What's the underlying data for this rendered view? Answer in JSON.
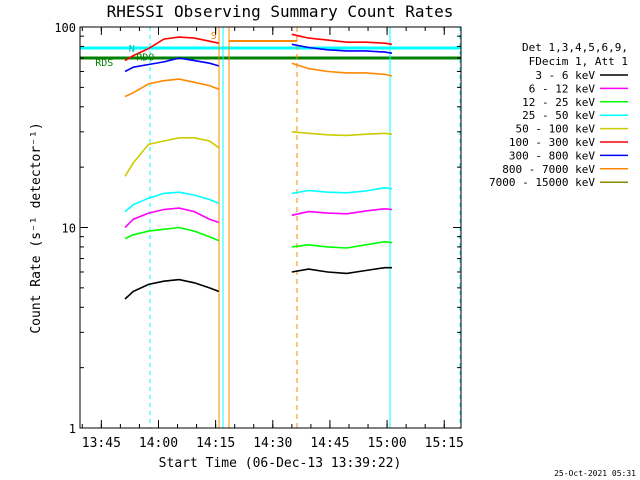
{
  "chart_data": {
    "type": "line",
    "title": "RHESSI Observing Summary Count Rates",
    "xlabel": "Start Time (06-Dec-13 13:39:22)",
    "ylabel": "Count Rate (s⁻¹ detector⁻¹)",
    "yscale": "log",
    "ylim": [
      1,
      100
    ],
    "xlim_minutes": [
      0,
      100
    ],
    "x_ticks": [
      {
        "label": "13:45",
        "minute": 5.6
      },
      {
        "label": "14:00",
        "minute": 20.6
      },
      {
        "label": "14:15",
        "minute": 35.6
      },
      {
        "label": "14:30",
        "minute": 50.6
      },
      {
        "label": "14:45",
        "minute": 65.6
      },
      {
        "label": "15:00",
        "minute": 80.6
      },
      {
        "label": "15:15",
        "minute": 95.6
      }
    ],
    "y_ticks": [
      {
        "label": "1",
        "value": 1
      },
      {
        "label": "10",
        "value": 10
      },
      {
        "label": "100",
        "value": 100
      }
    ],
    "legend_header": [
      "Det 1,3,4,5,6,9,",
      "FDecim 1, Att 1"
    ],
    "segments": [
      [
        11.8,
        36.4
      ],
      [
        55.6,
        81.9
      ]
    ],
    "series": [
      {
        "name": "3 - 6 keV",
        "color": "#000000",
        "values": [
          [
            11.8,
            4.4
          ],
          [
            14.0,
            4.8
          ],
          [
            18.0,
            5.2
          ],
          [
            22.0,
            5.4
          ],
          [
            26.0,
            5.5
          ],
          [
            30.0,
            5.3
          ],
          [
            34.0,
            5.0
          ],
          [
            36.4,
            4.8
          ],
          [
            55.6,
            6.0
          ],
          [
            60.0,
            6.2
          ],
          [
            65.0,
            6.0
          ],
          [
            70.0,
            5.9
          ],
          [
            75.0,
            6.1
          ],
          [
            80.0,
            6.3
          ],
          [
            81.9,
            6.3
          ]
        ]
      },
      {
        "name": "6 - 12 keV",
        "color": "#ff00ff",
        "values": [
          [
            11.8,
            10.0
          ],
          [
            14.0,
            11.0
          ],
          [
            18.0,
            11.8
          ],
          [
            22.0,
            12.3
          ],
          [
            26.0,
            12.5
          ],
          [
            30.0,
            12.0
          ],
          [
            34.0,
            11.0
          ],
          [
            36.4,
            10.6
          ],
          [
            55.6,
            11.5
          ],
          [
            60.0,
            12.0
          ],
          [
            65.0,
            11.8
          ],
          [
            70.0,
            11.7
          ],
          [
            75.0,
            12.1
          ],
          [
            80.0,
            12.4
          ],
          [
            81.9,
            12.3
          ]
        ]
      },
      {
        "name": "12 - 25 keV",
        "color": "#00ff00",
        "values": [
          [
            11.8,
            8.8
          ],
          [
            14.0,
            9.2
          ],
          [
            18.0,
            9.6
          ],
          [
            22.0,
            9.8
          ],
          [
            26.0,
            10.0
          ],
          [
            30.0,
            9.6
          ],
          [
            34.0,
            9.0
          ],
          [
            36.4,
            8.6
          ],
          [
            55.6,
            8.0
          ],
          [
            60.0,
            8.2
          ],
          [
            65.0,
            8.0
          ],
          [
            70.0,
            7.9
          ],
          [
            75.0,
            8.2
          ],
          [
            80.0,
            8.5
          ],
          [
            81.9,
            8.4
          ]
        ]
      },
      {
        "name": "25 - 50 keV",
        "color": "#00ffff",
        "values": [
          [
            11.8,
            12.0
          ],
          [
            14.0,
            13.0
          ],
          [
            18.0,
            14.0
          ],
          [
            22.0,
            14.8
          ],
          [
            26.0,
            15.0
          ],
          [
            30.0,
            14.5
          ],
          [
            34.0,
            13.8
          ],
          [
            36.4,
            13.2
          ],
          [
            55.6,
            14.8
          ],
          [
            60.0,
            15.3
          ],
          [
            65.0,
            15.0
          ],
          [
            70.0,
            14.9
          ],
          [
            75.0,
            15.2
          ],
          [
            80.0,
            15.8
          ],
          [
            81.9,
            15.6
          ]
        ]
      },
      {
        "name": "50 - 100 keV",
        "color": "#cccc00",
        "values": [
          [
            11.8,
            18.0
          ],
          [
            14.0,
            21.0
          ],
          [
            18.0,
            26.0
          ],
          [
            22.0,
            27.0
          ],
          [
            26.0,
            28.0
          ],
          [
            30.0,
            28.0
          ],
          [
            34.0,
            27.0
          ],
          [
            36.4,
            25.0
          ],
          [
            55.6,
            30.0
          ],
          [
            60.0,
            29.5
          ],
          [
            65.0,
            29.0
          ],
          [
            70.0,
            28.8
          ],
          [
            75.0,
            29.2
          ],
          [
            80.0,
            29.5
          ],
          [
            81.9,
            29.2
          ]
        ]
      },
      {
        "name": "100 - 300 keV",
        "color": "#ff0000",
        "values": [
          [
            11.8,
            68.0
          ],
          [
            14.0,
            72.0
          ],
          [
            18.0,
            78.0
          ],
          [
            22.0,
            87.0
          ],
          [
            26.0,
            89.0
          ],
          [
            30.0,
            88.0
          ],
          [
            34.0,
            85.0
          ],
          [
            36.4,
            83.0
          ],
          [
            55.6,
            92.0
          ],
          [
            60.0,
            88.0
          ],
          [
            65.0,
            86.0
          ],
          [
            70.0,
            84.0
          ],
          [
            75.0,
            84.0
          ],
          [
            80.0,
            83.0
          ],
          [
            81.9,
            82.0
          ]
        ]
      },
      {
        "name": "300 - 800 keV",
        "color": "#0000ff",
        "values": [
          [
            11.8,
            60.0
          ],
          [
            14.0,
            63.0
          ],
          [
            18.0,
            65.0
          ],
          [
            22.0,
            67.0
          ],
          [
            26.0,
            70.0
          ],
          [
            30.0,
            68.0
          ],
          [
            34.0,
            66.0
          ],
          [
            36.4,
            64.0
          ],
          [
            55.6,
            82.0
          ],
          [
            60.0,
            79.0
          ],
          [
            65.0,
            77.0
          ],
          [
            70.0,
            76.0
          ],
          [
            75.0,
            76.0
          ],
          [
            80.0,
            75.0
          ],
          [
            81.9,
            74.0
          ]
        ]
      },
      {
        "name": "800 - 7000 keV",
        "color": "#ff8800",
        "values": [
          [
            11.8,
            45.0
          ],
          [
            14.0,
            47.0
          ],
          [
            18.0,
            52.0
          ],
          [
            22.0,
            54.0
          ],
          [
            26.0,
            55.0
          ],
          [
            30.0,
            53.0
          ],
          [
            34.0,
            51.0
          ],
          [
            36.4,
            49.0
          ],
          [
            55.6,
            66.0
          ],
          [
            60.0,
            62.0
          ],
          [
            65.0,
            60.0
          ],
          [
            70.0,
            59.0
          ],
          [
            75.0,
            59.0
          ],
          [
            80.0,
            58.0
          ],
          [
            81.9,
            57.0
          ]
        ]
      },
      {
        "name": "7000 - 15000 keV",
        "color": "#888800",
        "values": []
      }
    ],
    "annotations": [
      {
        "text": "RDS",
        "minute": 4.0,
        "value": 64,
        "color": "#008000"
      },
      {
        "text": "RDO",
        "minute": 14.8,
        "value": 68,
        "color": "#008000"
      },
      {
        "text": "N",
        "minute": 12.8,
        "value": 75,
        "color": "#00c0c0"
      },
      {
        "text": "S",
        "minute": 34.3,
        "value": 87,
        "color": "#ff8800"
      }
    ],
    "footer": "25-Oct-2021 05:31"
  }
}
